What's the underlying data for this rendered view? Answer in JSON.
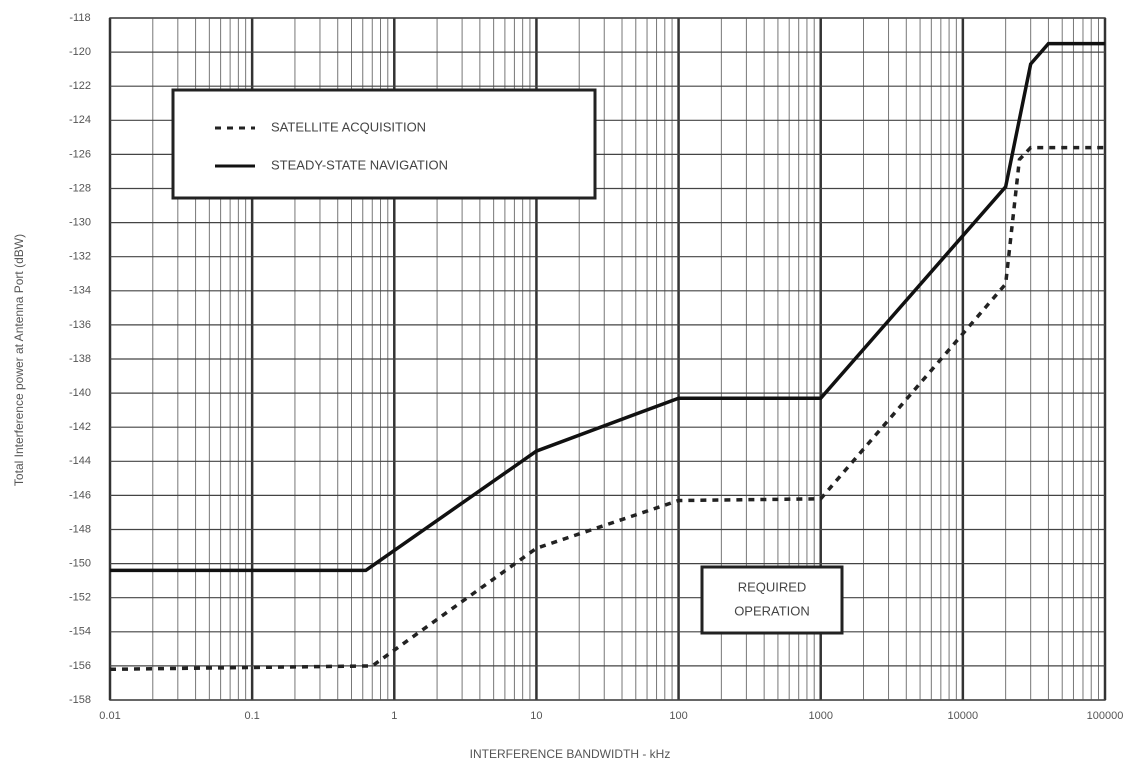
{
  "chart_data": {
    "type": "line",
    "xlabel": "INTERFERENCE BANDWIDTH - kHz",
    "ylabel": "Total Interference power at Antenna Port (dBW)",
    "annotation": [
      "REQUIRED",
      "OPERATION"
    ],
    "xlog": true,
    "grid": true,
    "legend": "upper left",
    "xlim": [
      0.01,
      100000
    ],
    "xticks": [
      0.01,
      0.1,
      1,
      10,
      100,
      1000,
      10000,
      100000
    ],
    "ylim": [
      -158,
      -118
    ],
    "yticks": [
      -118,
      -120,
      -122,
      -124,
      -126,
      -128,
      -130,
      -132,
      -134,
      -136,
      -138,
      -140,
      -142,
      -144,
      -146,
      -148,
      -150,
      -152,
      -154,
      -156,
      -158
    ],
    "series": [
      {
        "name": "SATELLITE ACQUISITION",
        "color": "#222222",
        "dashed": true,
        "x": [
          0.01,
          0.7,
          10,
          100,
          1000,
          20000,
          25000,
          30000,
          100000
        ],
        "values": [
          -156.2,
          -156,
          -149.1,
          -146.3,
          -146.2,
          -133.6,
          -126.3,
          -125.6,
          -125.6
        ]
      },
      {
        "name": "STEADY-STATE NAVIGATION",
        "color": "#111111",
        "dashed": false,
        "x": [
          0.01,
          0.63,
          10,
          100,
          1000,
          20000,
          30000,
          40000,
          100000
        ],
        "values": [
          -150.4,
          -150.4,
          -143.4,
          -140.3,
          -140.3,
          -127.9,
          -120.7,
          -119.5,
          -119.5
        ]
      }
    ]
  }
}
